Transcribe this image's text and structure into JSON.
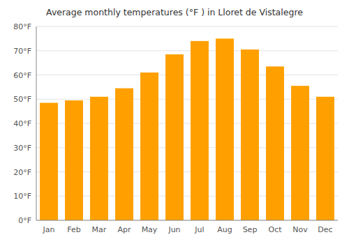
{
  "chart_data": {
    "type": "bar",
    "title": "Average monthly temperatures (°F ) in Lloret de Vistalegre",
    "categories": [
      "Jan",
      "Feb",
      "Mar",
      "Apr",
      "May",
      "Jun",
      "Jul",
      "Aug",
      "Sep",
      "Oct",
      "Nov",
      "Dec"
    ],
    "values": [
      48.5,
      49.5,
      51.0,
      54.5,
      61.0,
      68.5,
      74.0,
      75.0,
      70.5,
      63.5,
      55.5,
      51.0
    ],
    "color": "#FFA000",
    "ylim": [
      0,
      80
    ],
    "yticks": [
      {
        "value": 0,
        "label": "0°F"
      },
      {
        "value": 10,
        "label": "10°F"
      },
      {
        "value": 20,
        "label": "20°F"
      },
      {
        "value": 30,
        "label": "30°F"
      },
      {
        "value": 40,
        "label": "40°F"
      },
      {
        "value": 50,
        "label": "50°F"
      },
      {
        "value": 60,
        "label": "60°F"
      },
      {
        "value": 70,
        "label": "70°F"
      },
      {
        "value": 80,
        "label": "80°F"
      }
    ],
    "grid": true
  }
}
